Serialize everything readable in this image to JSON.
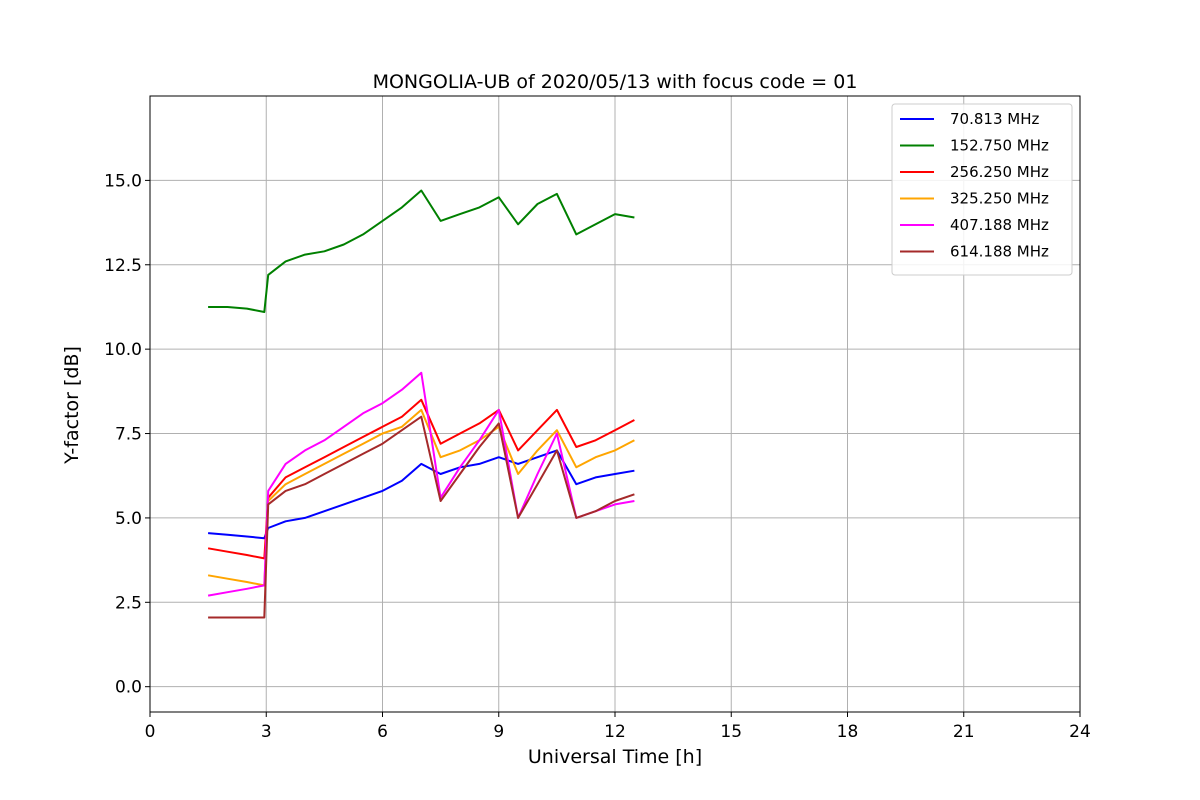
{
  "chart_data": {
    "type": "line",
    "title": "MONGOLIA-UB of 2020/05/13 with focus code = 01",
    "xlabel": "Universal Time [h]",
    "ylabel": "Y-factor [dB]",
    "xlim": [
      0,
      24
    ],
    "ylim": [
      -0.75,
      17.5
    ],
    "xticks": [
      0,
      3,
      6,
      9,
      12,
      15,
      18,
      21,
      24
    ],
    "xtick_labels": [
      "0",
      "3",
      "6",
      "9",
      "12",
      "15",
      "18",
      "21",
      "24"
    ],
    "yticks": [
      0,
      2.5,
      5,
      7.5,
      10,
      12.5,
      15
    ],
    "ytick_labels": [
      "0.0",
      "2.5",
      "5.0",
      "7.5",
      "10.0",
      "12.5",
      "15.0"
    ],
    "grid": true,
    "legend_position": "top-right",
    "series": [
      {
        "name": " 70.813 MHz",
        "color": "#0000ff",
        "x": [
          1.5,
          2.0,
          2.5,
          2.95,
          3.05,
          3.5,
          4.0,
          4.5,
          5.0,
          5.5,
          6.0,
          6.5,
          7.0,
          7.5,
          8.0,
          8.5,
          9.0,
          9.5,
          10.0,
          10.5,
          11.0,
          11.5,
          12.0,
          12.5
        ],
        "y": [
          4.55,
          4.5,
          4.45,
          4.4,
          4.7,
          4.9,
          5.0,
          5.2,
          5.4,
          5.6,
          5.8,
          6.1,
          6.6,
          6.3,
          6.5,
          6.6,
          6.8,
          6.6,
          6.8,
          7.0,
          6.0,
          6.2,
          6.3,
          6.4
        ]
      },
      {
        "name": "152.750 MHz",
        "color": "#008000",
        "x": [
          1.5,
          2.0,
          2.5,
          2.95,
          3.05,
          3.5,
          4.0,
          4.5,
          5.0,
          5.5,
          6.0,
          6.5,
          7.0,
          7.5,
          8.0,
          8.5,
          9.0,
          9.5,
          10.0,
          10.5,
          11.0,
          11.5,
          12.0,
          12.5
        ],
        "y": [
          11.25,
          11.25,
          11.2,
          11.1,
          12.2,
          12.6,
          12.8,
          12.9,
          13.1,
          13.4,
          13.8,
          14.2,
          14.7,
          13.8,
          14.0,
          14.2,
          14.5,
          13.7,
          14.3,
          14.6,
          13.4,
          13.7,
          14.0,
          13.9
        ]
      },
      {
        "name": "256.250 MHz",
        "color": "#ff0000",
        "x": [
          1.5,
          2.0,
          2.5,
          2.95,
          3.05,
          3.5,
          4.0,
          4.5,
          5.0,
          5.5,
          6.0,
          6.5,
          7.0,
          7.5,
          8.0,
          8.5,
          9.0,
          9.5,
          10.0,
          10.5,
          11.0,
          11.5,
          12.0,
          12.5
        ],
        "y": [
          4.1,
          4.0,
          3.9,
          3.8,
          5.6,
          6.2,
          6.5,
          6.8,
          7.1,
          7.4,
          7.7,
          8.0,
          8.5,
          7.2,
          7.5,
          7.8,
          8.2,
          7.0,
          7.6,
          8.2,
          7.1,
          7.3,
          7.6,
          7.9
        ]
      },
      {
        "name": "325.250 MHz",
        "color": "#ffa500",
        "x": [
          1.5,
          2.0,
          2.5,
          2.95,
          3.05,
          3.5,
          4.0,
          4.5,
          5.0,
          5.5,
          6.0,
          6.5,
          7.0,
          7.5,
          8.0,
          8.5,
          9.0,
          9.5,
          10.0,
          10.5,
          11.0,
          11.5,
          12.0,
          12.5
        ],
        "y": [
          3.3,
          3.2,
          3.1,
          3.0,
          5.5,
          6.0,
          6.3,
          6.6,
          6.9,
          7.2,
          7.5,
          7.7,
          8.2,
          6.8,
          7.0,
          7.3,
          7.7,
          6.3,
          7.0,
          7.6,
          6.5,
          6.8,
          7.0,
          7.3
        ]
      },
      {
        "name": "407.188 MHz",
        "color": "#ff00ff",
        "x": [
          1.5,
          2.0,
          2.5,
          2.95,
          3.05,
          3.5,
          4.0,
          4.5,
          5.0,
          5.5,
          6.0,
          6.5,
          7.0,
          7.5,
          8.0,
          8.5,
          9.0,
          9.5,
          10.0,
          10.5,
          11.0,
          11.5,
          12.0,
          12.5
        ],
        "y": [
          2.7,
          2.8,
          2.9,
          3.0,
          5.8,
          6.6,
          7.0,
          7.3,
          7.7,
          8.1,
          8.4,
          8.8,
          9.3,
          5.6,
          6.5,
          7.3,
          8.2,
          5.0,
          6.3,
          7.5,
          5.0,
          5.2,
          5.4,
          5.5
        ]
      },
      {
        "name": "614.188 MHz",
        "color": "#a52a2a",
        "x": [
          1.5,
          2.0,
          2.5,
          2.95,
          3.05,
          3.5,
          4.0,
          4.5,
          5.0,
          5.5,
          6.0,
          6.5,
          7.0,
          7.5,
          8.0,
          8.5,
          9.0,
          9.5,
          10.0,
          10.5,
          11.0,
          11.5,
          12.0,
          12.5
        ],
        "y": [
          2.05,
          2.05,
          2.05,
          2.05,
          5.4,
          5.8,
          6.0,
          6.3,
          6.6,
          6.9,
          7.2,
          7.6,
          8.0,
          5.5,
          6.3,
          7.1,
          7.8,
          5.0,
          6.0,
          7.0,
          5.0,
          5.2,
          5.5,
          5.7
        ]
      }
    ]
  }
}
